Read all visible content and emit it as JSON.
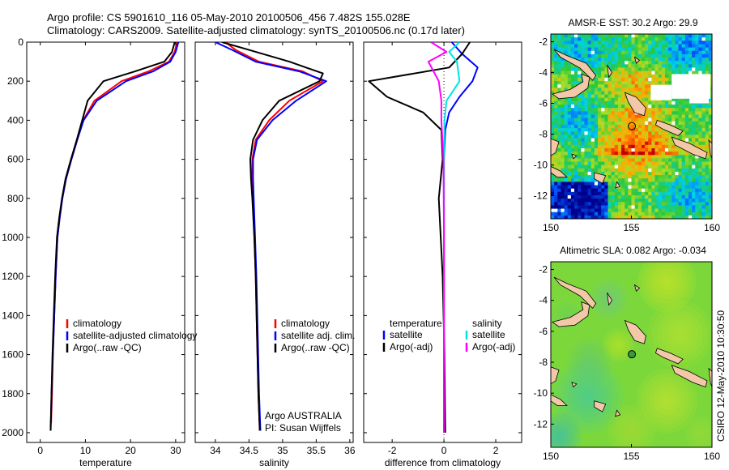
{
  "header": {
    "line1": "Argo profile: CS 5901610_116 05-May-2010 20100506_456 7.482S 155.028E",
    "line2": "Climatology: CARS2009. Satellite-adjusted climatology: synTS_20100506.nc (0.17d later)"
  },
  "credits": {
    "program": "Argo AUSTRALIA",
    "pi": "PI: Susan Wijffels",
    "stamp": "CSIRO 12-May-2010 10:30:50"
  },
  "colors": {
    "climatology": "#ff0000",
    "satellite": "#0000ff",
    "argo": "#000000",
    "cyan": "#00e5e5",
    "magenta": "#ff00ff",
    "land": "#f2c8a8"
  },
  "chart_data": [
    {
      "id": "temp",
      "type": "line",
      "xlabel": "temperature",
      "ylabel": "",
      "xlim": [
        -3,
        32
      ],
      "ylim": [
        2050,
        0
      ],
      "xticks": [
        0,
        10,
        20,
        30
      ],
      "yticks": [
        0,
        200,
        400,
        600,
        800,
        1000,
        1200,
        1400,
        1600,
        1800,
        2000
      ],
      "legend": [
        "climatology",
        "satellite-adjusted climatology",
        "Argo(..raw -QC)"
      ],
      "series": [
        {
          "name": "climatology",
          "color": "#ff0000",
          "x": [
            30.3,
            29.8,
            28.5,
            24,
            18,
            12,
            9.5,
            8.2,
            6.9,
            5.7,
            4.9,
            4.3,
            3.8,
            3.4,
            3.1,
            2.8,
            2.6,
            2.4
          ],
          "y": [
            0,
            50,
            100,
            150,
            200,
            300,
            400,
            500,
            600,
            700,
            800,
            900,
            1000,
            1200,
            1400,
            1600,
            1800,
            1950
          ]
        },
        {
          "name": "satellite-adjusted climatology",
          "color": "#0000ff",
          "x": [
            30.6,
            30.0,
            28.8,
            25,
            19,
            12.5,
            9.6,
            8.2,
            6.9,
            5.7,
            4.9,
            4.3,
            3.8,
            3.4,
            3.1,
            2.8,
            2.5,
            2.3
          ],
          "y": [
            0,
            50,
            100,
            150,
            200,
            300,
            400,
            500,
            600,
            700,
            800,
            900,
            1000,
            1200,
            1400,
            1600,
            1800,
            1990
          ]
        },
        {
          "name": "Argo(..raw -QC)",
          "color": "#000000",
          "x": [
            29.8,
            29.2,
            27.5,
            21,
            14,
            10.5,
            9.3,
            8.1,
            6.8,
            5.6,
            4.8,
            4.2,
            3.7,
            3.3,
            3.0,
            2.7,
            2.5,
            2.3
          ],
          "y": [
            0,
            50,
            100,
            150,
            200,
            300,
            400,
            500,
            600,
            700,
            800,
            900,
            1000,
            1200,
            1400,
            1600,
            1800,
            1990
          ]
        }
      ]
    },
    {
      "id": "sal",
      "type": "line",
      "xlabel": "salinity",
      "ylabel": "",
      "xlim": [
        33.7,
        36.05
      ],
      "ylim": [
        2050,
        0
      ],
      "xticks": [
        34,
        34.5,
        35,
        35.5,
        36
      ],
      "legend": [
        "climatology",
        "satellite adj. clim.",
        "Argo(..raw -QC)"
      ],
      "series": [
        {
          "name": "climatology",
          "color": "#ff0000",
          "x": [
            34.15,
            34.3,
            34.65,
            35.3,
            35.6,
            35.1,
            34.8,
            34.6,
            34.55,
            34.55,
            34.56,
            34.58,
            34.6,
            34.62,
            34.64,
            34.66
          ],
          "y": [
            0,
            40,
            100,
            150,
            200,
            300,
            400,
            500,
            600,
            700,
            800,
            1000,
            1200,
            1500,
            1800,
            1990
          ]
        },
        {
          "name": "satellite adj. clim.",
          "color": "#0000ff",
          "x": [
            34.0,
            34.25,
            34.6,
            35.25,
            35.65,
            35.2,
            34.85,
            34.62,
            34.56,
            34.56,
            34.57,
            34.59,
            34.61,
            34.63,
            34.65,
            34.67
          ],
          "y": [
            0,
            40,
            100,
            150,
            200,
            300,
            400,
            500,
            600,
            700,
            800,
            1000,
            1200,
            1500,
            1800,
            1990
          ]
        },
        {
          "name": "Argo(..raw -QC)",
          "color": "#000000",
          "x": [
            34.1,
            34.5,
            35.1,
            35.6,
            35.55,
            34.95,
            34.7,
            34.56,
            34.52,
            34.53,
            34.55,
            34.58,
            34.6,
            34.62,
            34.64,
            34.66
          ],
          "y": [
            0,
            40,
            100,
            160,
            200,
            300,
            400,
            500,
            600,
            700,
            800,
            1000,
            1200,
            1500,
            1800,
            1990
          ]
        }
      ]
    },
    {
      "id": "diff",
      "type": "line",
      "xlabel": "difference from climatology",
      "ylabel": "",
      "xlim": [
        -3.1,
        3.0
      ],
      "ylim": [
        2050,
        0
      ],
      "xticks": [
        -2,
        0,
        2
      ],
      "legend": [
        "temperature",
        "satellite",
        "Argo(-adj)",
        "salinity",
        "satellite",
        "Argo(-adj)"
      ],
      "series": [
        {
          "name": "temperature satellite",
          "color": "#0000ff",
          "x": [
            0.3,
            0.7,
            1.3,
            1.1,
            0.6,
            0.2,
            0.05,
            0.0,
            0.0,
            0.0,
            0.0,
            0.0
          ],
          "y": [
            0,
            60,
            130,
            200,
            280,
            360,
            450,
            600,
            800,
            1200,
            1600,
            2000
          ]
        },
        {
          "name": "temperature Argo(-adj)",
          "color": "#000000",
          "x": [
            1.0,
            0.7,
            0.2,
            -2.9,
            -2.2,
            -0.8,
            -0.1,
            -0.05,
            -0.2,
            -0.05,
            0.02,
            0.05
          ],
          "y": [
            0,
            60,
            130,
            200,
            280,
            360,
            450,
            600,
            800,
            1200,
            1600,
            2000
          ]
        },
        {
          "name": "salinity satellite",
          "color": "#00e5e5",
          "x": [
            0.6,
            0.2,
            0.5,
            0.6,
            0.1,
            0.02,
            0.0,
            0.0,
            0.0,
            0.0
          ],
          "y": [
            0,
            50,
            100,
            200,
            300,
            400,
            600,
            1000,
            1500,
            2000
          ]
        },
        {
          "name": "salinity Argo(-adj)",
          "color": "#ff00ff",
          "x": [
            -0.5,
            0.1,
            -0.6,
            -0.2,
            -0.1,
            -0.1,
            -0.02,
            0.0,
            0.0,
            0.0
          ],
          "y": [
            0,
            50,
            100,
            200,
            300,
            400,
            600,
            1000,
            1500,
            2000
          ]
        }
      ]
    },
    {
      "id": "sst",
      "type": "heatmap",
      "title": "AMSR-E SST: 30.2  Argo: 29.9",
      "xlim": [
        150,
        160
      ],
      "ylim": [
        -13.5,
        -1.5
      ],
      "xticks": [
        150,
        155,
        160
      ],
      "yticks": [
        -2,
        -4,
        -6,
        -8,
        -10,
        -12
      ],
      "marker": {
        "lon": 155.028,
        "lat": -7.482
      }
    },
    {
      "id": "sla",
      "type": "heatmap",
      "title": "Altimetric SLA: 0.082  Argo: -0.034",
      "xlim": [
        150,
        160
      ],
      "ylim": [
        -13.5,
        -1.5
      ],
      "xticks": [
        150,
        155,
        160
      ],
      "yticks": [
        -2,
        -4,
        -6,
        -8,
        -10,
        -12
      ],
      "marker": {
        "lon": 155.028,
        "lat": -7.482
      }
    }
  ]
}
